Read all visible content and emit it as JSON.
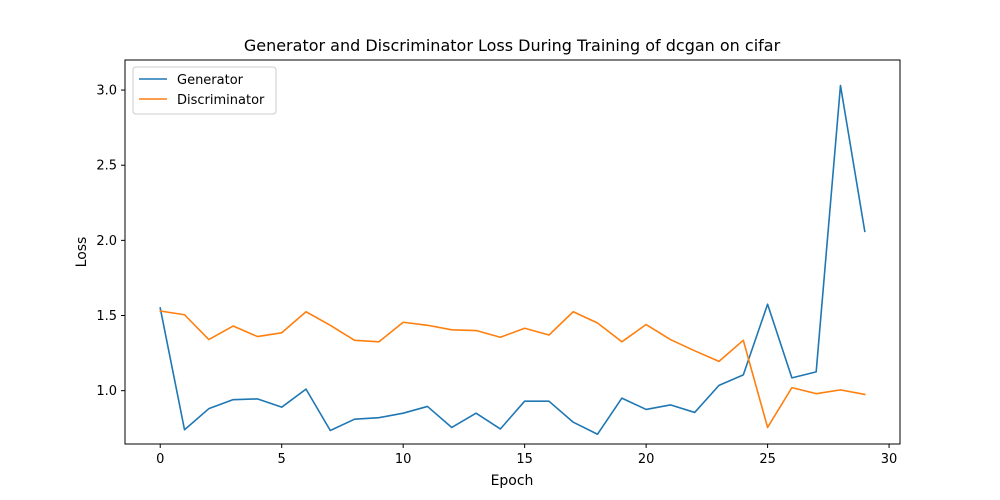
{
  "chart_data": {
    "type": "line",
    "title": "Generator and Discriminator Loss During Training of dcgan on cifar",
    "xlabel": "Epoch",
    "ylabel": "Loss",
    "x": [
      0,
      1,
      2,
      3,
      4,
      5,
      6,
      7,
      8,
      9,
      10,
      11,
      12,
      13,
      14,
      15,
      16,
      17,
      18,
      19,
      20,
      21,
      22,
      23,
      24,
      25,
      26,
      27,
      28,
      29
    ],
    "xlim": [
      -1.45,
      30.45
    ],
    "ylim": [
      0.645,
      3.2
    ],
    "xticks": [
      0,
      5,
      10,
      15,
      20,
      25,
      30
    ],
    "xtick_labels": [
      "0",
      "5",
      "10",
      "15",
      "20",
      "25",
      "30"
    ],
    "yticks": [
      1.0,
      1.5,
      2.0,
      2.5,
      3.0
    ],
    "ytick_labels": [
      "1.0",
      "1.5",
      "2.0",
      "2.5",
      "3.0"
    ],
    "grid": false,
    "legend_position": "top-left",
    "series": [
      {
        "name": "Generator",
        "color": "#1f77b4",
        "values": [
          1.55,
          0.74,
          0.88,
          0.94,
          0.945,
          0.89,
          1.01,
          0.735,
          0.81,
          0.82,
          0.85,
          0.895,
          0.755,
          0.85,
          0.745,
          0.93,
          0.93,
          0.79,
          0.71,
          0.95,
          0.875,
          0.905,
          0.855,
          1.035,
          1.105,
          1.575,
          1.085,
          1.125,
          3.03,
          2.06
        ]
      },
      {
        "name": "Discriminator",
        "color": "#ff7f0e",
        "values": [
          1.53,
          1.505,
          1.34,
          1.43,
          1.36,
          1.385,
          1.525,
          1.435,
          1.335,
          1.325,
          1.455,
          1.435,
          1.405,
          1.4,
          1.355,
          1.415,
          1.37,
          1.525,
          1.45,
          1.325,
          1.44,
          1.34,
          1.265,
          1.195,
          1.335,
          0.755,
          1.02,
          0.98,
          1.005,
          0.975
        ]
      }
    ]
  }
}
